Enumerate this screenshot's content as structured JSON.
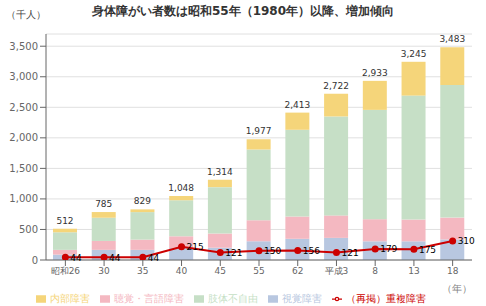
{
  "chart_data": {
    "type": "bar",
    "title": "身体障がい者数は昭和55年（1980年）以降、増加傾向",
    "xlabel": "（年）",
    "ylabel": "（千人）",
    "stacked": true,
    "grid": true,
    "legend": "bottom",
    "categories": [
      "昭和26",
      "30",
      "35",
      "40",
      "45",
      "55",
      "62",
      "平成3",
      "8",
      "13",
      "18"
    ],
    "series": [
      {
        "name": "視覚障害",
        "type": "bar",
        "color": "#b8c7e0",
        "values": [
          88,
          166,
          166,
          196,
          201,
          306,
          347,
          362,
          306,
          306,
          336
        ]
      },
      {
        "name": "聴覚・言語障害",
        "type": "bar",
        "color": "#f4b8c1",
        "values": [
          78,
          146,
          168,
          192,
          232,
          344,
          365,
          368,
          362,
          356,
          358
        ]
      },
      {
        "name": "肢体不自由",
        "type": "bar",
        "color": "#c6dfc6",
        "values": [
          288,
          380,
          450,
          590,
          760,
          1160,
          1420,
          1620,
          1790,
          2030,
          2173
        ]
      },
      {
        "name": "内部障害",
        "type": "bar",
        "color": "#f5d57a",
        "values": [
          58,
          93,
          45,
          70,
          121,
          167,
          281,
          372,
          475,
          553,
          616
        ]
      },
      {
        "name": "（再掲）重複障害",
        "type": "line",
        "color": "#cc0000",
        "marker": "circle",
        "line_style": "solid",
        "data_labels": true,
        "values": [
          44,
          44,
          44,
          215,
          121,
          150,
          156,
          121,
          179,
          175,
          310
        ]
      }
    ],
    "totals": {
      "values": [
        512,
        785,
        829,
        1048,
        1314,
        1977,
        2413,
        2722,
        2933,
        3245,
        3483
      ],
      "value_labels": [
        "512",
        "785",
        "829",
        "1,048",
        "1,314",
        "1,977",
        "2,413",
        "2,722",
        "2,933",
        "3,245",
        "3,483"
      ]
    },
    "ylim": [
      0,
      3700
    ],
    "yticks": [
      0,
      500,
      {
        "value": 1000,
        "label": "1,000"
      },
      {
        "value": 1500,
        "label": "1,500"
      },
      {
        "value": 2000,
        "label": "2,000"
      },
      {
        "value": 2500,
        "label": "2,500"
      },
      {
        "value": 3000,
        "label": "3,000"
      },
      {
        "value": 3500,
        "label": "3,500"
      }
    ]
  }
}
